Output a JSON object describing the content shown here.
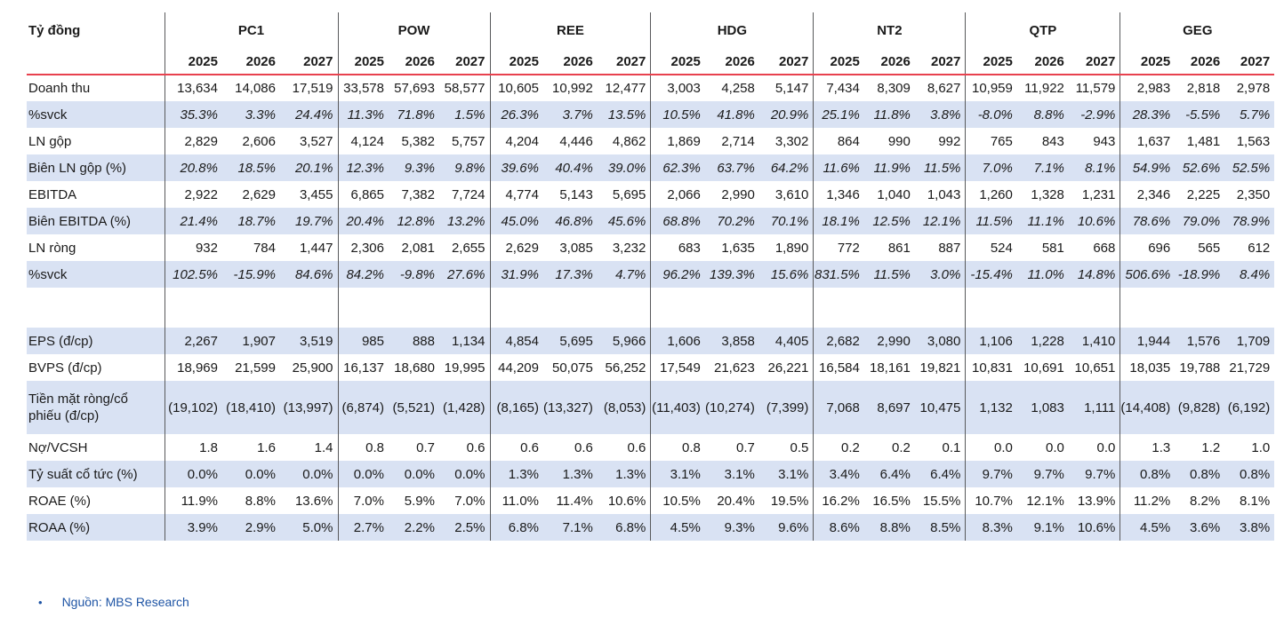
{
  "table": {
    "unit_header": "Tỷ đồng",
    "companies": [
      "PC1",
      "POW",
      "REE",
      "HDG",
      "NT2",
      "QTP",
      "GEG"
    ],
    "years": [
      "2025",
      "2026",
      "2027"
    ],
    "styles": {
      "stripe_color": "#d9e2f3",
      "separator_color": "#58595b",
      "red_line_color": "#e8414e",
      "text_color": "#1a1a1a",
      "footer_blue": "#1f55a5"
    },
    "rows": [
      {
        "label": "Doanh thu",
        "shaded": false,
        "italic": false,
        "spacer": false,
        "tall": false,
        "values": [
          [
            "13,634",
            "14,086",
            "17,519"
          ],
          [
            "33,578",
            "57,693",
            "58,577"
          ],
          [
            "10,605",
            "10,992",
            "12,477"
          ],
          [
            "3,003",
            "4,258",
            "5,147"
          ],
          [
            "7,434",
            "8,309",
            "8,627"
          ],
          [
            "10,959",
            "11,922",
            "11,579"
          ],
          [
            "2,983",
            "2,818",
            "2,978"
          ]
        ]
      },
      {
        "label": "%svck",
        "shaded": true,
        "italic": true,
        "spacer": false,
        "tall": false,
        "values": [
          [
            "35.3%",
            "3.3%",
            "24.4%"
          ],
          [
            "11.3%",
            "71.8%",
            "1.5%"
          ],
          [
            "26.3%",
            "3.7%",
            "13.5%"
          ],
          [
            "10.5%",
            "41.8%",
            "20.9%"
          ],
          [
            "25.1%",
            "11.8%",
            "3.8%"
          ],
          [
            "-8.0%",
            "8.8%",
            "-2.9%"
          ],
          [
            "28.3%",
            "-5.5%",
            "5.7%"
          ]
        ]
      },
      {
        "label": "LN gộp",
        "shaded": false,
        "italic": false,
        "spacer": false,
        "tall": false,
        "values": [
          [
            "2,829",
            "2,606",
            "3,527"
          ],
          [
            "4,124",
            "5,382",
            "5,757"
          ],
          [
            "4,204",
            "4,446",
            "4,862"
          ],
          [
            "1,869",
            "2,714",
            "3,302"
          ],
          [
            "864",
            "990",
            "992"
          ],
          [
            "765",
            "843",
            "943"
          ],
          [
            "1,637",
            "1,481",
            "1,563"
          ]
        ]
      },
      {
        "label": "Biên LN gộp (%)",
        "shaded": true,
        "italic": true,
        "spacer": false,
        "tall": false,
        "values": [
          [
            "20.8%",
            "18.5%",
            "20.1%"
          ],
          [
            "12.3%",
            "9.3%",
            "9.8%"
          ],
          [
            "39.6%",
            "40.4%",
            "39.0%"
          ],
          [
            "62.3%",
            "63.7%",
            "64.2%"
          ],
          [
            "11.6%",
            "11.9%",
            "11.5%"
          ],
          [
            "7.0%",
            "7.1%",
            "8.1%"
          ],
          [
            "54.9%",
            "52.6%",
            "52.5%"
          ]
        ]
      },
      {
        "label": "EBITDA",
        "shaded": false,
        "italic": false,
        "spacer": false,
        "tall": false,
        "values": [
          [
            "2,922",
            "2,629",
            "3,455"
          ],
          [
            "6,865",
            "7,382",
            "7,724"
          ],
          [
            "4,774",
            "5,143",
            "5,695"
          ],
          [
            "2,066",
            "2,990",
            "3,610"
          ],
          [
            "1,346",
            "1,040",
            "1,043"
          ],
          [
            "1,260",
            "1,328",
            "1,231"
          ],
          [
            "2,346",
            "2,225",
            "2,350"
          ]
        ]
      },
      {
        "label": "Biên EBITDA (%)",
        "shaded": true,
        "italic": true,
        "spacer": false,
        "tall": false,
        "values": [
          [
            "21.4%",
            "18.7%",
            "19.7%"
          ],
          [
            "20.4%",
            "12.8%",
            "13.2%"
          ],
          [
            "45.0%",
            "46.8%",
            "45.6%"
          ],
          [
            "68.8%",
            "70.2%",
            "70.1%"
          ],
          [
            "18.1%",
            "12.5%",
            "12.1%"
          ],
          [
            "11.5%",
            "11.1%",
            "10.6%"
          ],
          [
            "78.6%",
            "79.0%",
            "78.9%"
          ]
        ]
      },
      {
        "label": "LN ròng",
        "shaded": false,
        "italic": false,
        "spacer": false,
        "tall": false,
        "values": [
          [
            "932",
            "784",
            "1,447"
          ],
          [
            "2,306",
            "2,081",
            "2,655"
          ],
          [
            "2,629",
            "3,085",
            "3,232"
          ],
          [
            "683",
            "1,635",
            "1,890"
          ],
          [
            "772",
            "861",
            "887"
          ],
          [
            "524",
            "581",
            "668"
          ],
          [
            "696",
            "565",
            "612"
          ]
        ]
      },
      {
        "label": "%svck",
        "shaded": true,
        "italic": true,
        "spacer": false,
        "tall": false,
        "values": [
          [
            "102.5%",
            "-15.9%",
            "84.6%"
          ],
          [
            "84.2%",
            "-9.8%",
            "27.6%"
          ],
          [
            "31.9%",
            "17.3%",
            "4.7%"
          ],
          [
            "96.2%",
            "139.3%",
            "15.6%"
          ],
          [
            "831.5%",
            "11.5%",
            "3.0%"
          ],
          [
            "-15.4%",
            "11.0%",
            "14.8%"
          ],
          [
            "506.6%",
            "-18.9%",
            "8.4%"
          ]
        ]
      },
      {
        "label": "",
        "shaded": false,
        "italic": false,
        "spacer": true,
        "tall": false,
        "values": [
          [
            "",
            "",
            ""
          ],
          [
            "",
            "",
            ""
          ],
          [
            "",
            "",
            ""
          ],
          [
            "",
            "",
            ""
          ],
          [
            "",
            "",
            ""
          ],
          [
            "",
            "",
            ""
          ],
          [
            "",
            "",
            ""
          ]
        ]
      },
      {
        "label": "EPS (đ/cp)",
        "shaded": true,
        "italic": false,
        "spacer": false,
        "tall": false,
        "values": [
          [
            "2,267",
            "1,907",
            "3,519"
          ],
          [
            "985",
            "888",
            "1,134"
          ],
          [
            "4,854",
            "5,695",
            "5,966"
          ],
          [
            "1,606",
            "3,858",
            "4,405"
          ],
          [
            "2,682",
            "2,990",
            "3,080"
          ],
          [
            "1,106",
            "1,228",
            "1,410"
          ],
          [
            "1,944",
            "1,576",
            "1,709"
          ]
        ]
      },
      {
        "label": "BVPS (đ/cp)",
        "shaded": false,
        "italic": false,
        "spacer": false,
        "tall": false,
        "values": [
          [
            "18,969",
            "21,599",
            "25,900"
          ],
          [
            "16,137",
            "18,680",
            "19,995"
          ],
          [
            "44,209",
            "50,075",
            "56,252"
          ],
          [
            "17,549",
            "21,623",
            "26,221"
          ],
          [
            "16,584",
            "18,161",
            "19,821"
          ],
          [
            "10,831",
            "10,691",
            "10,651"
          ],
          [
            "18,035",
            "19,788",
            "21,729"
          ]
        ]
      },
      {
        "label": "Tiền mặt ròng/cổ phiếu (đ/cp)",
        "shaded": true,
        "italic": false,
        "spacer": false,
        "tall": true,
        "values": [
          [
            "(19,102)",
            "(18,410)",
            "(13,997)"
          ],
          [
            "(6,874)",
            "(5,521)",
            "(1,428)"
          ],
          [
            "(8,165)",
            "(13,327)",
            "(8,053)"
          ],
          [
            "(11,403)",
            "(10,274)",
            "(7,399)"
          ],
          [
            "7,068",
            "8,697",
            "10,475"
          ],
          [
            "1,132",
            "1,083",
            "1,111"
          ],
          [
            "(14,408)",
            "(9,828)",
            "(6,192)"
          ]
        ]
      },
      {
        "label": "Nợ/VCSH",
        "shaded": false,
        "italic": false,
        "spacer": false,
        "tall": false,
        "values": [
          [
            "1.8",
            "1.6",
            "1.4"
          ],
          [
            "0.8",
            "0.7",
            "0.6"
          ],
          [
            "0.6",
            "0.6",
            "0.6"
          ],
          [
            "0.8",
            "0.7",
            "0.5"
          ],
          [
            "0.2",
            "0.2",
            "0.1"
          ],
          [
            "0.0",
            "0.0",
            "0.0"
          ],
          [
            "1.3",
            "1.2",
            "1.0"
          ]
        ]
      },
      {
        "label": "Tỷ suất cổ tức (%)",
        "shaded": true,
        "italic": false,
        "spacer": false,
        "tall": false,
        "values": [
          [
            "0.0%",
            "0.0%",
            "0.0%"
          ],
          [
            "0.0%",
            "0.0%",
            "0.0%"
          ],
          [
            "1.3%",
            "1.3%",
            "1.3%"
          ],
          [
            "3.1%",
            "3.1%",
            "3.1%"
          ],
          [
            "3.4%",
            "6.4%",
            "6.4%"
          ],
          [
            "9.7%",
            "9.7%",
            "9.7%"
          ],
          [
            "0.8%",
            "0.8%",
            "0.8%"
          ]
        ]
      },
      {
        "label": "ROAE (%)",
        "shaded": false,
        "italic": false,
        "spacer": false,
        "tall": false,
        "values": [
          [
            "11.9%",
            "8.8%",
            "13.6%"
          ],
          [
            "7.0%",
            "5.9%",
            "7.0%"
          ],
          [
            "11.0%",
            "11.4%",
            "10.6%"
          ],
          [
            "10.5%",
            "20.4%",
            "19.5%"
          ],
          [
            "16.2%",
            "16.5%",
            "15.5%"
          ],
          [
            "10.7%",
            "12.1%",
            "13.9%"
          ],
          [
            "11.2%",
            "8.2%",
            "8.1%"
          ]
        ]
      },
      {
        "label": "ROAA (%)",
        "shaded": true,
        "italic": false,
        "spacer": false,
        "tall": false,
        "values": [
          [
            "3.9%",
            "2.9%",
            "5.0%"
          ],
          [
            "2.7%",
            "2.2%",
            "2.5%"
          ],
          [
            "6.8%",
            "7.1%",
            "6.8%"
          ],
          [
            "4.5%",
            "9.3%",
            "9.6%"
          ],
          [
            "8.6%",
            "8.8%",
            "8.5%"
          ],
          [
            "8.3%",
            "9.1%",
            "10.6%"
          ],
          [
            "4.5%",
            "3.6%",
            "3.8%"
          ]
        ]
      }
    ]
  },
  "footer": {
    "bullet": "•",
    "source_text": "Nguồn: MBS Research"
  }
}
